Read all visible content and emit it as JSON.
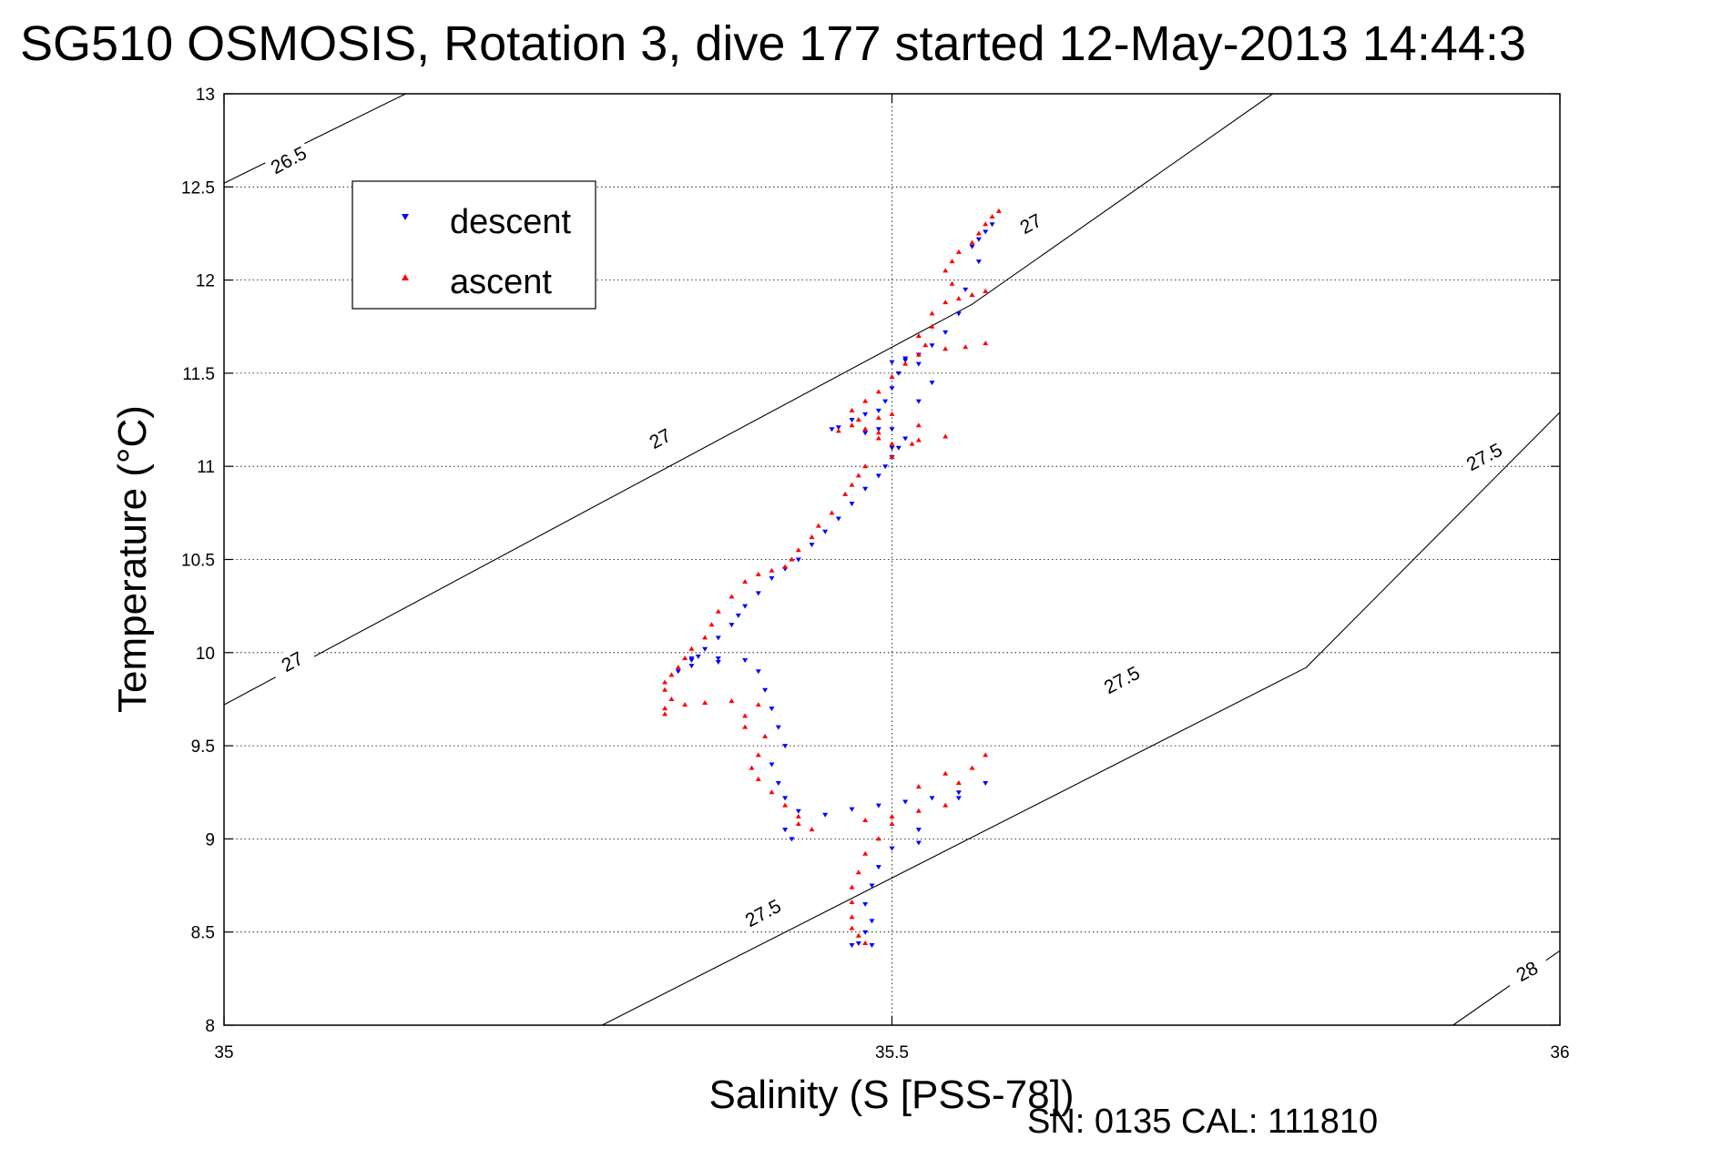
{
  "chart_data": {
    "type": "scatter",
    "title": "SG510 OSMOSIS, Rotation 3, dive 177 started 12-May-2013 14:44:3",
    "xlabel": "Salinity (S [PSS-78])",
    "ylabel": "Temperature (°C)",
    "xlim": [
      35,
      36
    ],
    "ylim": [
      8,
      13
    ],
    "x_ticks": [
      "35",
      "35.5",
      "36"
    ],
    "y_ticks": [
      "8",
      "8.5",
      "9",
      "9.5",
      "10",
      "10.5",
      "11",
      "11.5",
      "12",
      "12.5",
      "13"
    ],
    "grid": true,
    "legend_position": "top-left",
    "footnote": "SN: 0135  CAL: 111810",
    "isopycnal_labels": [
      "26.5",
      "27",
      "27",
      "27",
      "27.5",
      "27.5",
      "27.5",
      "28"
    ],
    "isopycnals": [
      {
        "label": "26.5",
        "points": [
          [
            35.0,
            12.52
          ],
          [
            35.136,
            13.0
          ]
        ]
      },
      {
        "label": "27",
        "points": [
          [
            35.0,
            9.72
          ],
          [
            35.56,
            11.87
          ],
          [
            35.785,
            13.0
          ]
        ]
      },
      {
        "label": "27.5",
        "points": [
          [
            35.283,
            8.0
          ],
          [
            35.81,
            9.92
          ],
          [
            36.0,
            11.29
          ]
        ]
      },
      {
        "label": "28",
        "points": [
          [
            35.92,
            8.0
          ],
          [
            36.0,
            8.4
          ]
        ]
      }
    ],
    "series": [
      {
        "name": "descent",
        "color": "#0000ff",
        "marker": "triangle-down",
        "points": [
          [
            35.575,
            12.3
          ],
          [
            35.57,
            12.26
          ],
          [
            35.565,
            12.22
          ],
          [
            35.56,
            12.18
          ],
          [
            35.565,
            12.1
          ],
          [
            35.555,
            11.95
          ],
          [
            35.55,
            11.82
          ],
          [
            35.54,
            11.72
          ],
          [
            35.53,
            11.65
          ],
          [
            35.52,
            11.6
          ],
          [
            35.51,
            11.57
          ],
          [
            35.5,
            11.56
          ],
          [
            35.505,
            11.5
          ],
          [
            35.5,
            11.42
          ],
          [
            35.495,
            11.35
          ],
          [
            35.49,
            11.3
          ],
          [
            35.48,
            11.28
          ],
          [
            35.47,
            11.25
          ],
          [
            35.46,
            11.21
          ],
          [
            35.455,
            11.2
          ],
          [
            35.48,
            11.18
          ],
          [
            35.5,
            11.2
          ],
          [
            35.51,
            11.15
          ],
          [
            35.505,
            11.1
          ],
          [
            35.5,
            11.05
          ],
          [
            35.495,
            11.0
          ],
          [
            35.49,
            10.95
          ],
          [
            35.48,
            10.88
          ],
          [
            35.47,
            10.8
          ],
          [
            35.46,
            10.72
          ],
          [
            35.45,
            10.65
          ],
          [
            35.44,
            10.58
          ],
          [
            35.43,
            10.5
          ],
          [
            35.42,
            10.45
          ],
          [
            35.41,
            10.4
          ],
          [
            35.4,
            10.32
          ],
          [
            35.39,
            10.25
          ],
          [
            35.385,
            10.2
          ],
          [
            35.38,
            10.15
          ],
          [
            35.37,
            10.08
          ],
          [
            35.36,
            10.02
          ],
          [
            35.355,
            9.98
          ],
          [
            35.35,
            9.97
          ],
          [
            35.37,
            9.97
          ],
          [
            35.39,
            9.96
          ],
          [
            35.4,
            9.9
          ],
          [
            35.405,
            9.8
          ],
          [
            35.41,
            9.7
          ],
          [
            35.415,
            9.6
          ],
          [
            35.42,
            9.5
          ],
          [
            35.41,
            9.4
          ],
          [
            35.415,
            9.3
          ],
          [
            35.42,
            9.22
          ],
          [
            35.43,
            9.15
          ],
          [
            35.42,
            9.05
          ],
          [
            35.425,
            9.0
          ],
          [
            35.45,
            9.13
          ],
          [
            35.47,
            9.16
          ],
          [
            35.49,
            9.18
          ],
          [
            35.51,
            9.2
          ],
          [
            35.53,
            9.22
          ],
          [
            35.55,
            9.25
          ],
          [
            35.57,
            9.3
          ],
          [
            35.55,
            9.22
          ],
          [
            35.52,
            9.05
          ],
          [
            35.5,
            8.95
          ],
          [
            35.49,
            8.85
          ],
          [
            35.485,
            8.75
          ],
          [
            35.48,
            8.65
          ],
          [
            35.485,
            8.56
          ],
          [
            35.48,
            8.5
          ],
          [
            35.475,
            8.44
          ],
          [
            35.47,
            8.43
          ],
          [
            35.485,
            8.43
          ],
          [
            35.52,
            8.98
          ],
          [
            35.37,
            9.95
          ],
          [
            35.34,
            9.9
          ],
          [
            35.35,
            9.93
          ],
          [
            35.35,
            9.96
          ],
          [
            35.52,
            11.35
          ],
          [
            35.53,
            11.45
          ],
          [
            35.52,
            11.55
          ],
          [
            35.51,
            11.58
          ],
          [
            35.49,
            11.2
          ],
          [
            35.5,
            11.1
          ]
        ]
      },
      {
        "name": "ascent",
        "color": "#ff0000",
        "marker": "triangle-up",
        "points": [
          [
            35.58,
            12.37
          ],
          [
            35.575,
            12.34
          ],
          [
            35.57,
            12.3
          ],
          [
            35.565,
            12.25
          ],
          [
            35.56,
            12.2
          ],
          [
            35.55,
            12.15
          ],
          [
            35.545,
            12.1
          ],
          [
            35.54,
            12.05
          ],
          [
            35.545,
            11.98
          ],
          [
            35.55,
            11.9
          ],
          [
            35.56,
            11.92
          ],
          [
            35.57,
            11.94
          ],
          [
            35.54,
            11.88
          ],
          [
            35.53,
            11.82
          ],
          [
            35.53,
            11.75
          ],
          [
            35.52,
            11.7
          ],
          [
            35.525,
            11.65
          ],
          [
            35.54,
            11.63
          ],
          [
            35.555,
            11.64
          ],
          [
            35.57,
            11.66
          ],
          [
            35.52,
            11.6
          ],
          [
            35.51,
            11.55
          ],
          [
            35.5,
            11.48
          ],
          [
            35.49,
            11.4
          ],
          [
            35.48,
            11.35
          ],
          [
            35.47,
            11.3
          ],
          [
            35.475,
            11.25
          ],
          [
            35.48,
            11.2
          ],
          [
            35.49,
            11.15
          ],
          [
            35.5,
            11.12
          ],
          [
            35.52,
            11.14
          ],
          [
            35.54,
            11.16
          ],
          [
            35.47,
            11.22
          ],
          [
            35.46,
            11.19
          ],
          [
            35.49,
            11.26
          ],
          [
            35.48,
            11.0
          ],
          [
            35.475,
            10.95
          ],
          [
            35.47,
            10.9
          ],
          [
            35.465,
            10.85
          ],
          [
            35.455,
            10.75
          ],
          [
            35.445,
            10.68
          ],
          [
            35.44,
            10.62
          ],
          [
            35.43,
            10.55
          ],
          [
            35.425,
            10.5
          ],
          [
            35.42,
            10.46
          ],
          [
            35.41,
            10.44
          ],
          [
            35.4,
            10.42
          ],
          [
            35.39,
            10.38
          ],
          [
            35.38,
            10.3
          ],
          [
            35.37,
            10.22
          ],
          [
            35.365,
            10.15
          ],
          [
            35.36,
            10.08
          ],
          [
            35.35,
            10.02
          ],
          [
            35.345,
            9.97
          ],
          [
            35.34,
            9.92
          ],
          [
            35.335,
            9.88
          ],
          [
            35.33,
            9.84
          ],
          [
            35.33,
            9.8
          ],
          [
            35.335,
            9.75
          ],
          [
            35.33,
            9.7
          ],
          [
            35.33,
            9.67
          ],
          [
            35.345,
            9.72
          ],
          [
            35.36,
            9.73
          ],
          [
            35.38,
            9.74
          ],
          [
            35.4,
            9.72
          ],
          [
            35.39,
            9.66
          ],
          [
            35.39,
            9.6
          ],
          [
            35.405,
            9.55
          ],
          [
            35.4,
            9.45
          ],
          [
            35.395,
            9.38
          ],
          [
            35.4,
            9.32
          ],
          [
            35.41,
            9.25
          ],
          [
            35.42,
            9.18
          ],
          [
            35.43,
            9.12
          ],
          [
            35.43,
            9.08
          ],
          [
            35.44,
            9.05
          ],
          [
            35.48,
            9.1
          ],
          [
            35.5,
            9.12
          ],
          [
            35.52,
            9.15
          ],
          [
            35.54,
            9.18
          ],
          [
            35.55,
            9.3
          ],
          [
            35.56,
            9.38
          ],
          [
            35.57,
            9.45
          ],
          [
            35.54,
            9.35
          ],
          [
            35.52,
            9.28
          ],
          [
            35.5,
            9.08
          ],
          [
            35.49,
            9.0
          ],
          [
            35.48,
            8.92
          ],
          [
            35.475,
            8.82
          ],
          [
            35.47,
            8.74
          ],
          [
            35.47,
            8.66
          ],
          [
            35.47,
            8.58
          ],
          [
            35.47,
            8.52
          ],
          [
            35.475,
            8.48
          ],
          [
            35.48,
            8.44
          ],
          [
            35.5,
            11.28
          ],
          [
            35.515,
            11.12
          ],
          [
            35.52,
            11.22
          ],
          [
            35.49,
            11.18
          ],
          [
            35.5,
            11.05
          ]
        ]
      }
    ]
  }
}
